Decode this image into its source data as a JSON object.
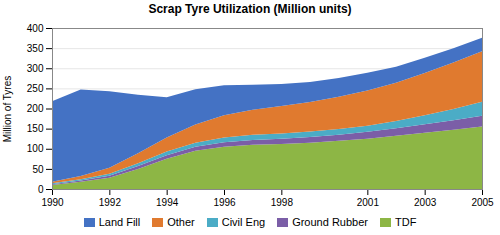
{
  "chart_data": {
    "type": "area",
    "stacked": true,
    "title": "Scrap Tyre Utilization (Million units)",
    "ylabel": "Million of Tyres",
    "x": [
      1990,
      1991,
      1992,
      1993,
      1994,
      1995,
      1996,
      1997,
      1998,
      1999,
      2000,
      2001,
      2002,
      2003,
      2004,
      2005
    ],
    "series": [
      {
        "name": "TDF",
        "color": "#8db645",
        "values": [
          10,
          18,
          28,
          50,
          75,
          95,
          105,
          110,
          112,
          115,
          120,
          125,
          132,
          140,
          147,
          155
        ]
      },
      {
        "name": "Ground Rubber",
        "color": "#7b5ea7",
        "values": [
          2,
          3,
          5,
          7,
          9,
          10,
          11,
          12,
          13,
          14,
          15,
          17,
          19,
          21,
          24,
          27
        ]
      },
      {
        "name": "Civil Eng",
        "color": "#4bacc6",
        "values": [
          2,
          3,
          5,
          7,
          9,
          10,
          12,
          13,
          13,
          14,
          14,
          15,
          18,
          22,
          28,
          35
        ]
      },
      {
        "name": "Other",
        "color": "#e07a2f",
        "values": [
          4,
          8,
          15,
          25,
          35,
          45,
          55,
          62,
          68,
          73,
          80,
          88,
          95,
          105,
          115,
          125
        ]
      },
      {
        "name": "Land Fill",
        "color": "#4472c4",
        "values": [
          200,
          215,
          190,
          145,
          100,
          88,
          75,
          62,
          55,
          50,
          47,
          44,
          40,
          38,
          36,
          34
        ]
      }
    ],
    "xlim": [
      1990,
      2005
    ],
    "xticks": [
      1990,
      1992,
      1994,
      1996,
      1998,
      2001,
      2003,
      2005
    ],
    "ylim": [
      0,
      400
    ],
    "yticks": [
      0,
      50,
      100,
      150,
      200,
      250,
      300,
      350,
      400
    ],
    "grid": true,
    "legend": "bottom"
  }
}
